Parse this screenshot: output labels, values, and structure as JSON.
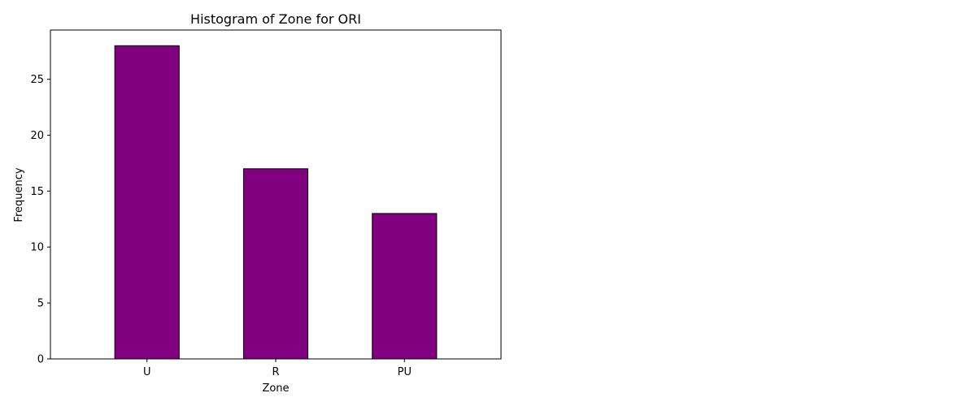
{
  "chart_data": {
    "type": "bar",
    "title": "Histogram of Zone for ORI",
    "xlabel": "Zone",
    "ylabel": "Frequency",
    "categories": [
      "U",
      "R",
      "PU"
    ],
    "values": [
      28,
      17,
      13
    ],
    "ylim": [
      0,
      29.4
    ],
    "yticks": [
      0,
      5,
      10,
      15,
      20,
      25
    ],
    "grid": false,
    "legend": "none",
    "bar_color": "#800080",
    "edge_color": "#000000"
  }
}
